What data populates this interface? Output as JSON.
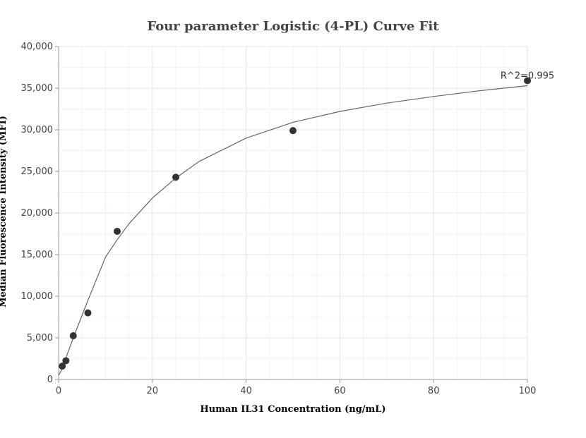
{
  "chart_data": {
    "type": "scatter",
    "title": "Four parameter Logistic (4-PL) Curve Fit",
    "xlabel": "Human IL31 Concentration (ng/mL)",
    "ylabel": "Median Fluorescence Intensity (MFI)",
    "xlim": [
      0,
      100
    ],
    "ylim": [
      0,
      40000
    ],
    "x_ticks": [
      "0",
      "20",
      "40",
      "60",
      "80",
      "100"
    ],
    "y_ticks": [
      "0",
      "5,000",
      "10,000",
      "15,000",
      "20,000",
      "25,000",
      "30,000",
      "35,000",
      "40,000"
    ],
    "x_tick_values": [
      0,
      20,
      40,
      60,
      80,
      100
    ],
    "y_tick_values": [
      0,
      5000,
      10000,
      15000,
      20000,
      25000,
      30000,
      35000,
      40000
    ],
    "grid": true,
    "points": [
      {
        "x": 0.78,
        "y": 1600
      },
      {
        "x": 1.56,
        "y": 2250
      },
      {
        "x": 3.125,
        "y": 5250
      },
      {
        "x": 6.25,
        "y": 8000
      },
      {
        "x": 12.5,
        "y": 17800
      },
      {
        "x": 25,
        "y": 24300
      },
      {
        "x": 50,
        "y": 29900
      },
      {
        "x": 100,
        "y": 35900
      }
    ],
    "fit_curve": [
      {
        "x": 0,
        "y": 500
      },
      {
        "x": 0.78,
        "y": 1300
      },
      {
        "x": 1.56,
        "y": 2600
      },
      {
        "x": 3.125,
        "y": 5000
      },
      {
        "x": 6.25,
        "y": 9500
      },
      {
        "x": 10,
        "y": 14700
      },
      {
        "x": 12.5,
        "y": 16800
      },
      {
        "x": 15,
        "y": 18700
      },
      {
        "x": 20,
        "y": 21800
      },
      {
        "x": 25,
        "y": 24200
      },
      {
        "x": 30,
        "y": 26200
      },
      {
        "x": 40,
        "y": 29000
      },
      {
        "x": 50,
        "y": 30900
      },
      {
        "x": 60,
        "y": 32200
      },
      {
        "x": 70,
        "y": 33200
      },
      {
        "x": 80,
        "y": 34000
      },
      {
        "x": 90,
        "y": 34700
      },
      {
        "x": 100,
        "y": 35300
      }
    ],
    "annotation": {
      "text": "R^2=0.995",
      "x": 100,
      "y": 35900
    },
    "colors": {
      "points": "#333333",
      "curve": "#666666",
      "grid": "#e6eaef",
      "axis": "#999999"
    }
  }
}
